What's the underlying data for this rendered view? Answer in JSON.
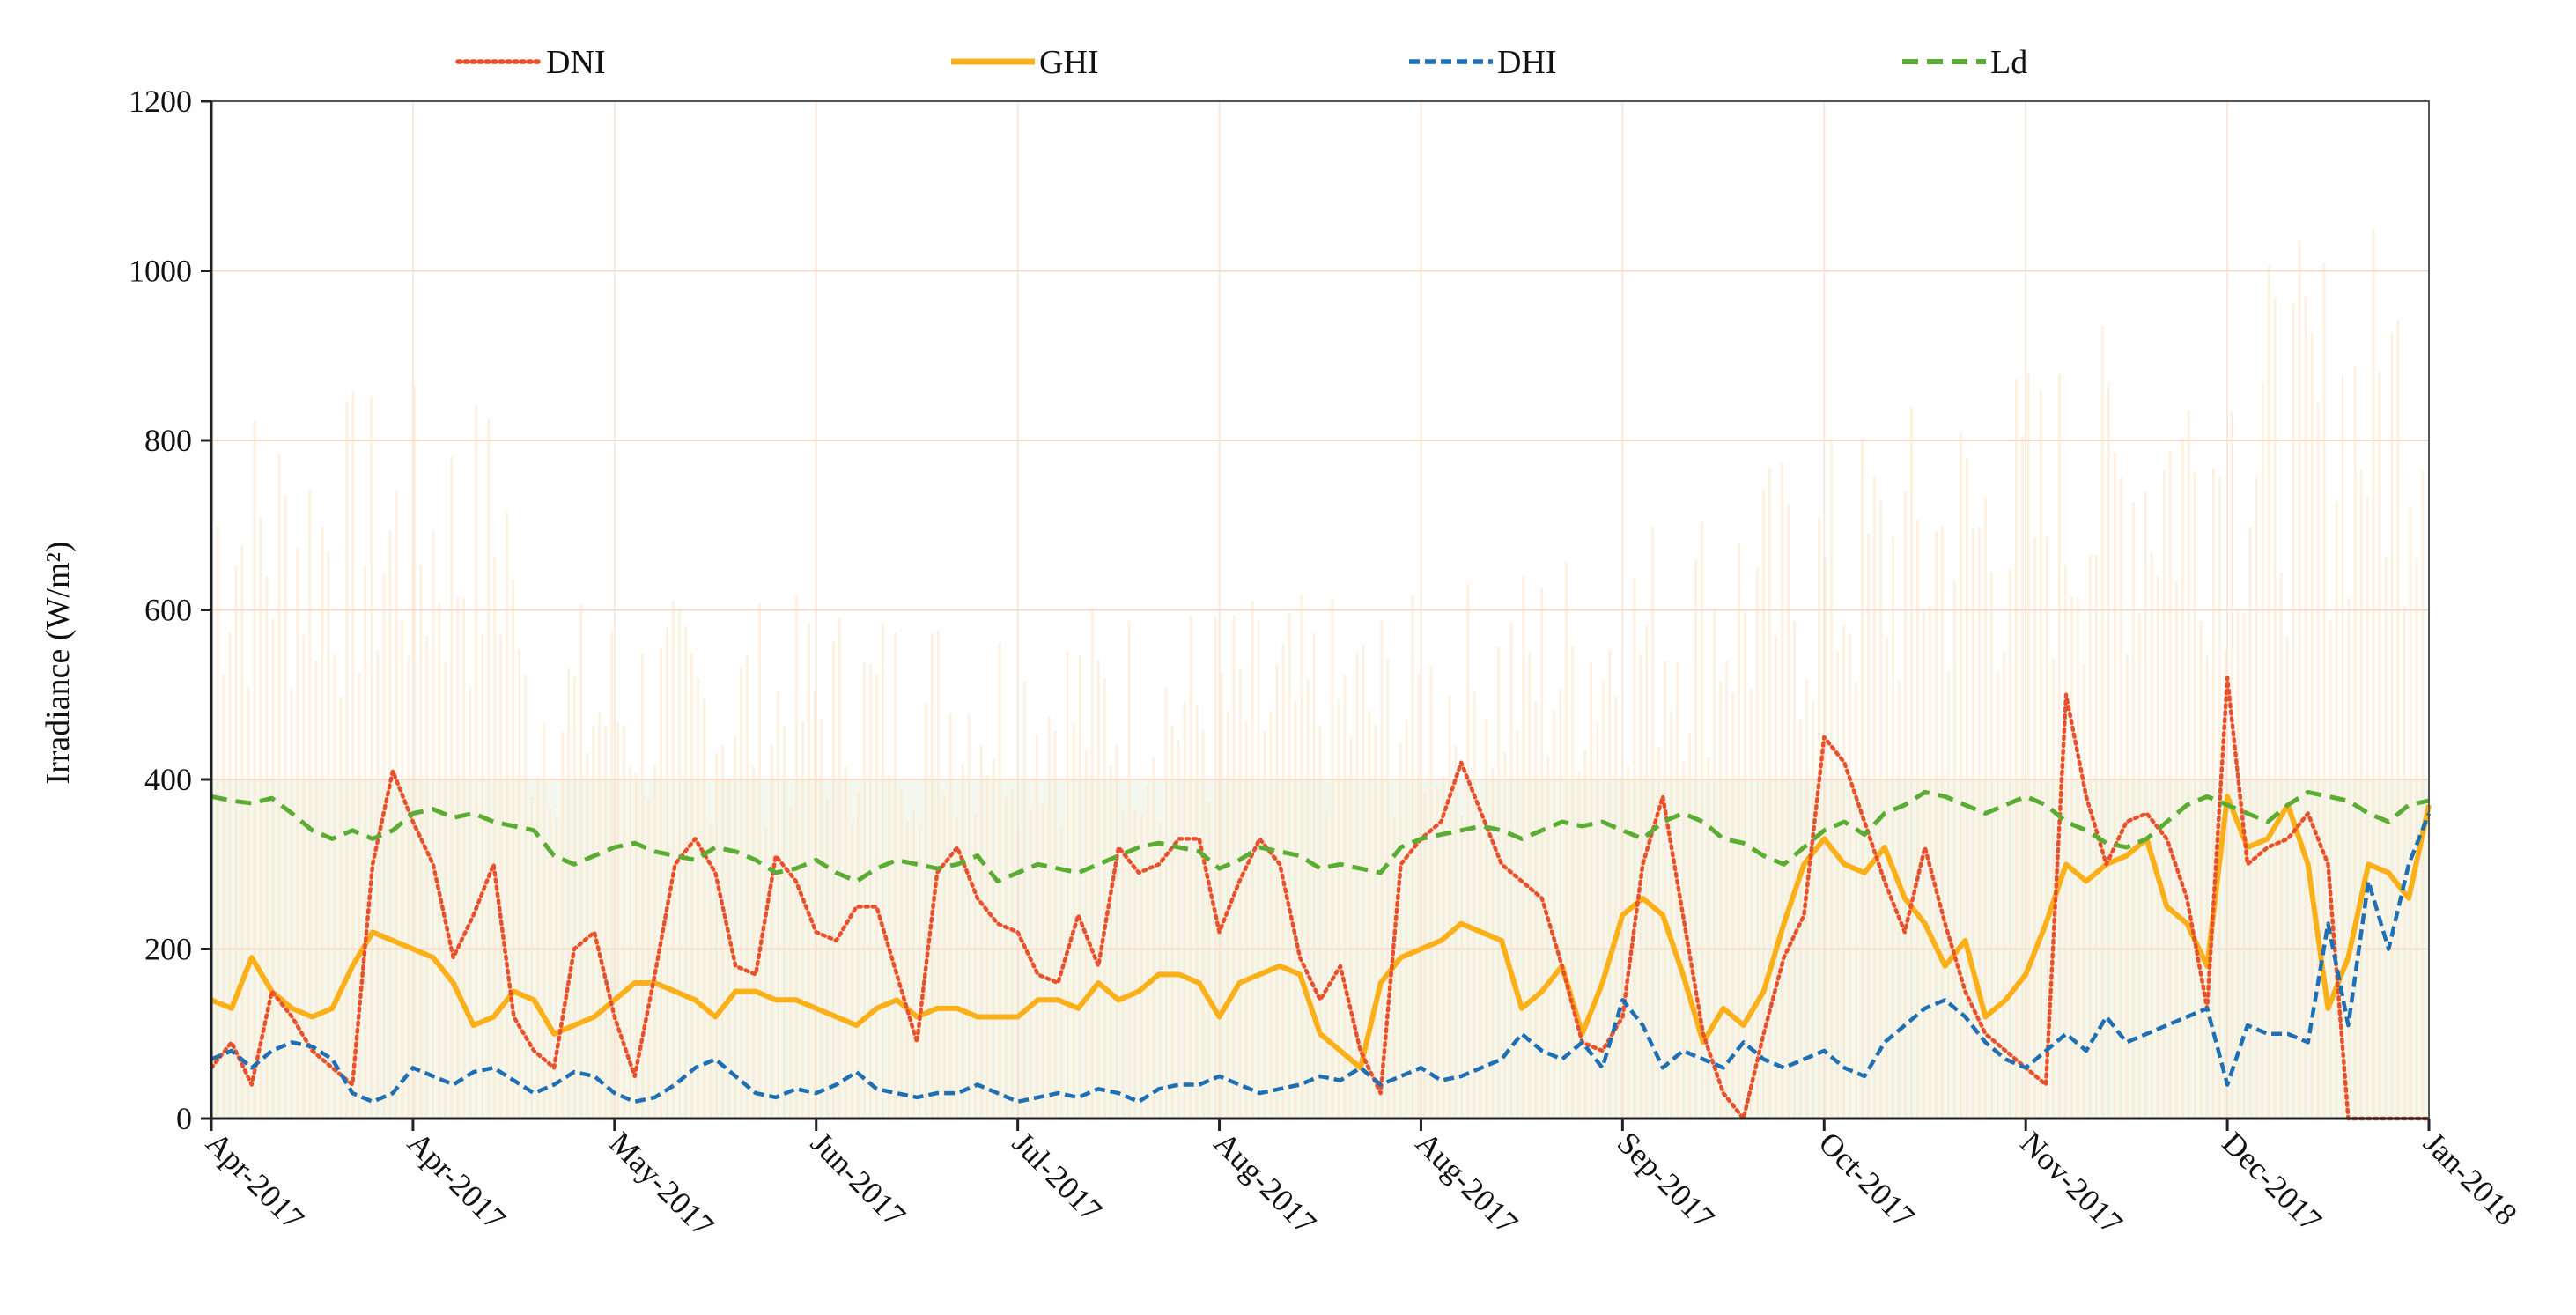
{
  "chart_data": {
    "type": "line",
    "title": "",
    "xlabel": "",
    "ylabel": "Irradiance (W/m²)",
    "ylim": [
      0,
      1200
    ],
    "yticks": [
      "0",
      "200",
      "400",
      "600",
      "800",
      "1000",
      "1200"
    ],
    "xtick_labels": [
      "Apr-2017",
      "Apr-2017",
      "May-2017",
      "Jun-2017",
      "Jul-2017",
      "Aug-2017",
      "Aug-2017",
      "Sep-2017",
      "Oct-2017",
      "Nov-2017",
      "Dec-2017",
      "Jan-2018"
    ],
    "x_day_range": [
      0,
      110
    ],
    "x_tick_days": [
      0,
      10,
      20,
      30,
      40,
      50,
      60,
      70,
      80,
      90,
      100,
      110
    ],
    "grid": true,
    "legend_position": "top",
    "colors": {
      "DNI": "#e8512c",
      "GHI": "#fbb01a",
      "DHI": "#1e6fb3",
      "Ld": "#5aac32",
      "background_trace": "#fde6c4",
      "grid": "#f4d8c8"
    },
    "series": [
      {
        "name": "DNI",
        "style": "dotted",
        "x": [
          0,
          1,
          2,
          3,
          4,
          5,
          6,
          7,
          8,
          9,
          10,
          11,
          12,
          13,
          14,
          15,
          16,
          17,
          18,
          19,
          20,
          21,
          22,
          23,
          24,
          25,
          26,
          27,
          28,
          29,
          30,
          31,
          32,
          33,
          34,
          35,
          36,
          37,
          38,
          39,
          40,
          41,
          42,
          43,
          44,
          45,
          46,
          47,
          48,
          49,
          50,
          51,
          52,
          53,
          54,
          55,
          56,
          57,
          58,
          59,
          60,
          61,
          62,
          63,
          64,
          65,
          66,
          67,
          68,
          69,
          70,
          71,
          72,
          73,
          74,
          75,
          76,
          77,
          78,
          79,
          80,
          81,
          82,
          83,
          84,
          85,
          86,
          87,
          88,
          89,
          90,
          91,
          92,
          93,
          94,
          95,
          96,
          97,
          98,
          99,
          100,
          101,
          102,
          103,
          104,
          105,
          106,
          107,
          108,
          109,
          110
        ],
        "values": [
          60,
          90,
          40,
          150,
          120,
          80,
          60,
          40,
          300,
          410,
          350,
          300,
          190,
          240,
          300,
          120,
          80,
          60,
          200,
          220,
          120,
          50,
          170,
          300,
          330,
          290,
          180,
          170,
          310,
          280,
          220,
          210,
          250,
          250,
          170,
          90,
          290,
          320,
          260,
          230,
          220,
          170,
          160,
          240,
          180,
          320,
          290,
          300,
          330,
          330,
          220,
          280,
          330,
          300,
          190,
          140,
          180,
          80,
          30,
          300,
          330,
          350,
          420,
          360,
          300,
          280,
          260,
          180,
          90,
          80,
          120,
          300,
          380,
          240,
          100,
          30,
          0,
          100,
          190,
          240,
          450,
          420,
          350,
          280,
          220,
          320,
          230,
          150,
          100,
          80,
          60,
          40,
          500,
          380,
          300,
          350,
          360,
          330,
          260,
          130,
          520,
          300,
          320,
          330,
          360,
          300,
          0,
          0,
          0,
          0,
          0
        ]
      },
      {
        "name": "GHI",
        "style": "solid",
        "x": [
          0,
          1,
          2,
          3,
          4,
          5,
          6,
          7,
          8,
          9,
          10,
          11,
          12,
          13,
          14,
          15,
          16,
          17,
          18,
          19,
          20,
          21,
          22,
          23,
          24,
          25,
          26,
          27,
          28,
          29,
          30,
          31,
          32,
          33,
          34,
          35,
          36,
          37,
          38,
          39,
          40,
          41,
          42,
          43,
          44,
          45,
          46,
          47,
          48,
          49,
          50,
          51,
          52,
          53,
          54,
          55,
          56,
          57,
          58,
          59,
          60,
          61,
          62,
          63,
          64,
          65,
          66,
          67,
          68,
          69,
          70,
          71,
          72,
          73,
          74,
          75,
          76,
          77,
          78,
          79,
          80,
          81,
          82,
          83,
          84,
          85,
          86,
          87,
          88,
          89,
          90,
          91,
          92,
          93,
          94,
          95,
          96,
          97,
          98,
          99,
          100,
          101,
          102,
          103,
          104,
          105,
          106,
          107,
          108,
          109,
          110
        ],
        "values": [
          140,
          130,
          190,
          150,
          130,
          120,
          130,
          180,
          220,
          210,
          200,
          190,
          160,
          110,
          120,
          150,
          140,
          100,
          110,
          120,
          140,
          160,
          160,
          150,
          140,
          120,
          150,
          150,
          140,
          140,
          130,
          120,
          110,
          130,
          140,
          120,
          130,
          130,
          120,
          120,
          120,
          140,
          140,
          130,
          160,
          140,
          150,
          170,
          170,
          160,
          120,
          160,
          170,
          180,
          170,
          100,
          80,
          60,
          160,
          190,
          200,
          210,
          230,
          220,
          210,
          130,
          150,
          180,
          100,
          160,
          240,
          260,
          240,
          170,
          90,
          130,
          110,
          150,
          230,
          300,
          330,
          300,
          290,
          320,
          260,
          230,
          180,
          210,
          120,
          140,
          170,
          230,
          300,
          280,
          300,
          310,
          330,
          250,
          230,
          180,
          380,
          320,
          330,
          370,
          300,
          130,
          190,
          300,
          290,
          260,
          370
        ]
      },
      {
        "name": "DHI",
        "style": "dashed",
        "x": [
          0,
          1,
          2,
          3,
          4,
          5,
          6,
          7,
          8,
          9,
          10,
          11,
          12,
          13,
          14,
          15,
          16,
          17,
          18,
          19,
          20,
          21,
          22,
          23,
          24,
          25,
          26,
          27,
          28,
          29,
          30,
          31,
          32,
          33,
          34,
          35,
          36,
          37,
          38,
          39,
          40,
          41,
          42,
          43,
          44,
          45,
          46,
          47,
          48,
          49,
          50,
          51,
          52,
          53,
          54,
          55,
          56,
          57,
          58,
          59,
          60,
          61,
          62,
          63,
          64,
          65,
          66,
          67,
          68,
          69,
          70,
          71,
          72,
          73,
          74,
          75,
          76,
          77,
          78,
          79,
          80,
          81,
          82,
          83,
          84,
          85,
          86,
          87,
          88,
          89,
          90,
          91,
          92,
          93,
          94,
          95,
          96,
          97,
          98,
          99,
          100,
          101,
          102,
          103,
          104,
          105,
          106,
          107,
          108,
          109,
          110
        ],
        "values": [
          70,
          80,
          60,
          80,
          90,
          85,
          70,
          30,
          20,
          30,
          60,
          50,
          40,
          55,
          60,
          45,
          30,
          40,
          55,
          50,
          30,
          20,
          25,
          40,
          60,
          70,
          50,
          30,
          25,
          35,
          30,
          40,
          55,
          35,
          30,
          25,
          30,
          30,
          40,
          30,
          20,
          25,
          30,
          25,
          35,
          30,
          20,
          35,
          40,
          40,
          50,
          40,
          30,
          35,
          40,
          50,
          45,
          60,
          40,
          50,
          60,
          45,
          50,
          60,
          70,
          100,
          80,
          70,
          90,
          60,
          140,
          110,
          60,
          80,
          70,
          60,
          90,
          70,
          60,
          70,
          80,
          60,
          50,
          90,
          110,
          130,
          140,
          120,
          90,
          70,
          60,
          80,
          100,
          80,
          120,
          90,
          100,
          110,
          120,
          130,
          40,
          110,
          100,
          100,
          90,
          230,
          110,
          280,
          200,
          300,
          360
        ]
      },
      {
        "name": "Ld",
        "style": "dashed",
        "x": [
          0,
          1,
          2,
          3,
          4,
          5,
          6,
          7,
          8,
          9,
          10,
          11,
          12,
          13,
          14,
          15,
          16,
          17,
          18,
          19,
          20,
          21,
          22,
          23,
          24,
          25,
          26,
          27,
          28,
          29,
          30,
          31,
          32,
          33,
          34,
          35,
          36,
          37,
          38,
          39,
          40,
          41,
          42,
          43,
          44,
          45,
          46,
          47,
          48,
          49,
          50,
          51,
          52,
          53,
          54,
          55,
          56,
          57,
          58,
          59,
          60,
          61,
          62,
          63,
          64,
          65,
          66,
          67,
          68,
          69,
          70,
          71,
          72,
          73,
          74,
          75,
          76,
          77,
          78,
          79,
          80,
          81,
          82,
          83,
          84,
          85,
          86,
          87,
          88,
          89,
          90,
          91,
          92,
          93,
          94,
          95,
          96,
          97,
          98,
          99,
          100,
          101,
          102,
          103,
          104,
          105,
          106,
          107,
          108,
          109,
          110
        ],
        "values": [
          380,
          375,
          372,
          378,
          360,
          340,
          330,
          340,
          330,
          340,
          360,
          365,
          355,
          360,
          350,
          345,
          340,
          310,
          300,
          310,
          320,
          325,
          315,
          310,
          305,
          320,
          315,
          305,
          290,
          295,
          305,
          290,
          280,
          295,
          305,
          300,
          295,
          300,
          310,
          280,
          290,
          300,
          295,
          290,
          300,
          310,
          320,
          325,
          320,
          315,
          295,
          305,
          320,
          315,
          310,
          295,
          300,
          295,
          290,
          320,
          330,
          335,
          340,
          345,
          340,
          330,
          340,
          350,
          345,
          350,
          340,
          330,
          350,
          360,
          350,
          330,
          325,
          310,
          300,
          320,
          340,
          350,
          335,
          360,
          370,
          385,
          380,
          370,
          360,
          370,
          380,
          370,
          350,
          340,
          325,
          320,
          330,
          350,
          370,
          380,
          370,
          360,
          350,
          370,
          385,
          380,
          375,
          360,
          350,
          370,
          375
        ]
      }
    ]
  }
}
